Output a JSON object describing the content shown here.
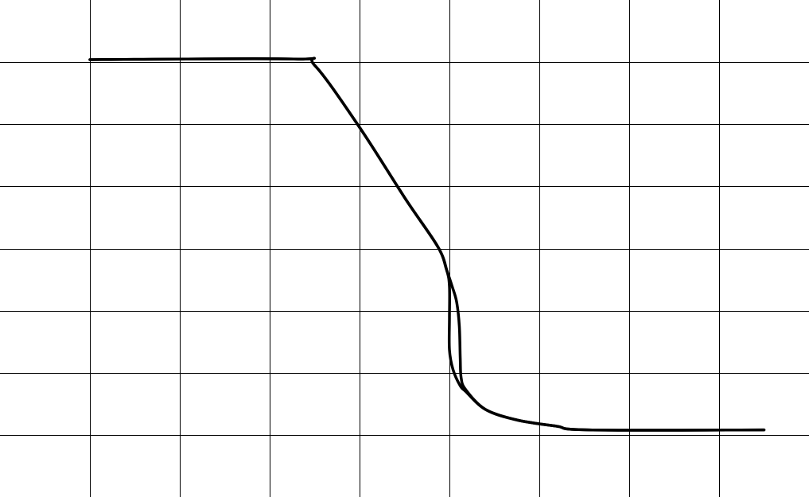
{
  "chart_data": {
    "type": "line",
    "title": "",
    "xlabel": "",
    "ylabel": "",
    "xlim": [
      0,
      9
    ],
    "ylim": [
      0,
      8
    ],
    "grid": true,
    "grid_step": {
      "x": 1,
      "y": 1
    },
    "colors": {
      "background": "#ffffff",
      "grid": "#000000",
      "line": "#000000"
    },
    "series": [
      {
        "x": [
          1.0,
          3.27,
          3.5,
          4.0,
          4.51,
          4.87,
          4.97,
          5.03,
          5.08,
          5.11,
          5.12,
          5.13,
          5.18,
          5.4,
          5.75,
          6.19,
          6.55,
          8.5
        ],
        "y": [
          7.04,
          7.05,
          6.95,
          5.95,
          4.8,
          4.03,
          3.65,
          3.39,
          3.14,
          2.75,
          2.24,
          1.92,
          1.73,
          1.41,
          1.24,
          1.14,
          1.08,
          1.08
        ]
      },
      {
        "x": [
          1.0,
          3.27,
          3.5,
          4.0,
          4.51,
          4.87,
          4.97,
          5.0,
          5.0,
          5.0,
          5.04,
          5.12,
          5.18,
          5.4,
          5.75,
          6.19,
          6.55,
          8.5
        ],
        "y": [
          7.04,
          7.05,
          6.95,
          5.95,
          4.8,
          4.03,
          3.65,
          3.39,
          2.88,
          2.37,
          2.05,
          1.79,
          1.7,
          1.41,
          1.24,
          1.14,
          1.08,
          1.08
        ]
      }
    ]
  }
}
